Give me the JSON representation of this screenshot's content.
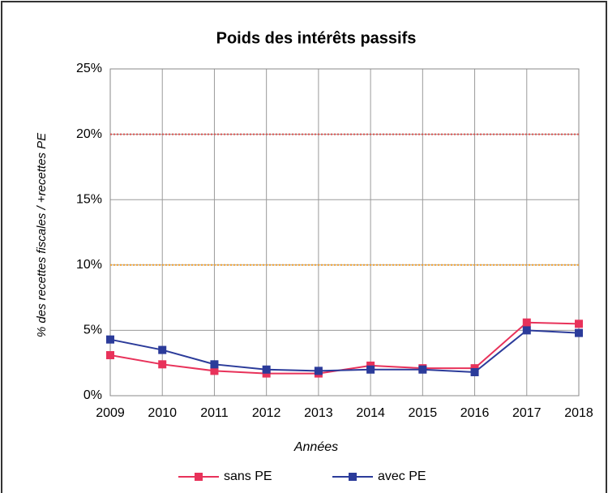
{
  "chart_data": {
    "type": "line",
    "title": "Poids des intérêts passifs",
    "x_label": "Années",
    "y_label": "% des recettes fiscales / +recettes PE",
    "categories": [
      "2009",
      "2010",
      "2011",
      "2012",
      "2013",
      "2014",
      "2015",
      "2016",
      "2017",
      "2018"
    ],
    "series": [
      {
        "name": "sans PE",
        "color": "#e8325a",
        "values": [
          3.1,
          2.4,
          1.9,
          1.7,
          1.7,
          2.3,
          2.1,
          2.1,
          5.6,
          5.5
        ]
      },
      {
        "name": "avec PE",
        "color": "#2b3b9a",
        "values": [
          4.3,
          3.5,
          2.4,
          2.0,
          1.9,
          2.0,
          2.0,
          1.8,
          5.0,
          4.8
        ]
      }
    ],
    "reference_lines": [
      {
        "value": 20,
        "color": "#d9534f"
      },
      {
        "value": 10,
        "color": "#f0a030"
      }
    ],
    "ylim": [
      0,
      25
    ],
    "yticks": [
      {
        "value": 0,
        "label": "0%"
      },
      {
        "value": 5,
        "label": "5%"
      },
      {
        "value": 10,
        "label": "10%"
      },
      {
        "value": 15,
        "label": "15%"
      },
      {
        "value": 20,
        "label": "20%"
      },
      {
        "value": 25,
        "label": "25%"
      }
    ],
    "grid": true
  }
}
